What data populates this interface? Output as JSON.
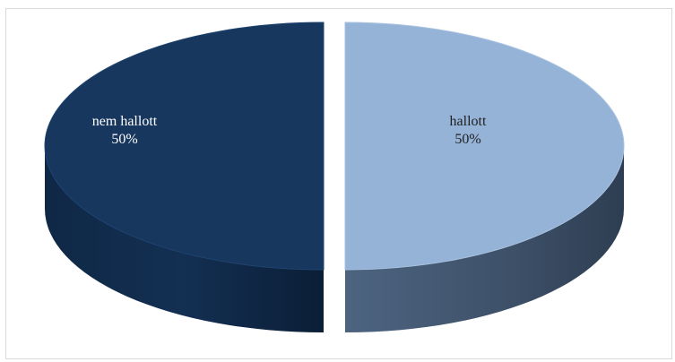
{
  "chart_data": {
    "type": "pie",
    "style": "3d-exploded",
    "title": "",
    "legend": "none",
    "slices": [
      {
        "label": "nem hallott",
        "value": 50,
        "percent_label": "50%",
        "color": "#17375e",
        "label_color": "#ffffff"
      },
      {
        "label": "hallott",
        "value": 50,
        "percent_label": "50%",
        "color": "#95b3d7",
        "label_color": "#1f1f1f"
      }
    ]
  }
}
